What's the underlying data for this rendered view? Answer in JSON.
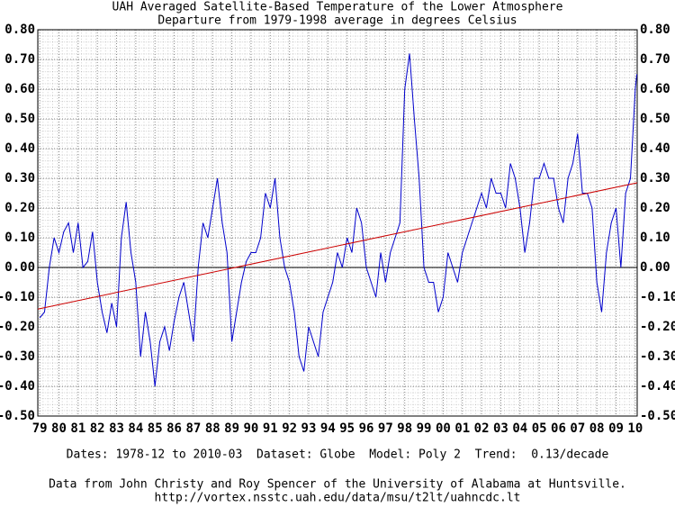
{
  "chart_data": {
    "type": "line",
    "title": "UAH Averaged Satellite-Based Temperature of the Lower Atmosphere",
    "subtitle": "Departure from 1979-1998 average in degrees Celsius",
    "footer": [
      "Dates: 1978-12 to 2010-03  Dataset: Globe  Model: Poly 2  Trend:  0.13/decade",
      "Data from John Christy and Roy Spencer of the University of Alabama at Huntsville.",
      "http://vortex.nsstc.uah.edu/data/msu/t2lt/uahncdc.lt"
    ],
    "grid": true,
    "xlim": [
      1978.9,
      2010.1
    ],
    "ylim": [
      -0.5,
      0.8
    ],
    "xticks": [
      {
        "value": 1979,
        "label": "79"
      },
      {
        "value": 1980,
        "label": "80"
      },
      {
        "value": 1981,
        "label": "81"
      },
      {
        "value": 1982,
        "label": "82"
      },
      {
        "value": 1983,
        "label": "83"
      },
      {
        "value": 1984,
        "label": "84"
      },
      {
        "value": 1985,
        "label": "85"
      },
      {
        "value": 1986,
        "label": "86"
      },
      {
        "value": 1987,
        "label": "87"
      },
      {
        "value": 1988,
        "label": "88"
      },
      {
        "value": 1989,
        "label": "89"
      },
      {
        "value": 1990,
        "label": "90"
      },
      {
        "value": 1991,
        "label": "91"
      },
      {
        "value": 1992,
        "label": "92"
      },
      {
        "value": 1993,
        "label": "93"
      },
      {
        "value": 1994,
        "label": "94"
      },
      {
        "value": 1995,
        "label": "95"
      },
      {
        "value": 1996,
        "label": "96"
      },
      {
        "value": 1997,
        "label": "97"
      },
      {
        "value": 1998,
        "label": "98"
      },
      {
        "value": 1999,
        "label": "99"
      },
      {
        "value": 2000,
        "label": "00"
      },
      {
        "value": 2001,
        "label": "01"
      },
      {
        "value": 2002,
        "label": "02"
      },
      {
        "value": 2003,
        "label": "03"
      },
      {
        "value": 2004,
        "label": "04"
      },
      {
        "value": 2005,
        "label": "05"
      },
      {
        "value": 2006,
        "label": "06"
      },
      {
        "value": 2007,
        "label": "07"
      },
      {
        "value": 2008,
        "label": "08"
      },
      {
        "value": 2009,
        "label": "09"
      },
      {
        "value": 2010,
        "label": "10"
      }
    ],
    "yticks": [
      {
        "value": 0.8,
        "label": "0.80"
      },
      {
        "value": 0.7,
        "label": "0.70"
      },
      {
        "value": 0.6,
        "label": "0.60"
      },
      {
        "value": 0.5,
        "label": "0.50"
      },
      {
        "value": 0.4,
        "label": "0.40"
      },
      {
        "value": 0.3,
        "label": "0.30"
      },
      {
        "value": 0.2,
        "label": "0.20"
      },
      {
        "value": 0.1,
        "label": "0.10"
      },
      {
        "value": 0,
        "label": "0.00"
      },
      {
        "value": -0.1,
        "label": "-0.10"
      },
      {
        "value": -0.2,
        "label": "-0.20"
      },
      {
        "value": -0.3,
        "label": "-0.30"
      },
      {
        "value": -0.4,
        "label": "-0.40"
      },
      {
        "value": -0.5,
        "label": "-0.50"
      }
    ],
    "x": [
      1979,
      1979.25,
      1979.5,
      1979.75,
      1980,
      1980.25,
      1980.5,
      1980.75,
      1981,
      1981.25,
      1981.5,
      1981.75,
      1982,
      1982.25,
      1982.5,
      1982.75,
      1983,
      1983.25,
      1983.5,
      1983.75,
      1984,
      1984.25,
      1984.5,
      1984.75,
      1985,
      1985.25,
      1985.5,
      1985.75,
      1986,
      1986.25,
      1986.5,
      1986.75,
      1987,
      1987.25,
      1987.5,
      1987.75,
      1988,
      1988.25,
      1988.5,
      1988.75,
      1989,
      1989.25,
      1989.5,
      1989.75,
      1990,
      1990.25,
      1990.5,
      1990.75,
      1991,
      1991.25,
      1991.5,
      1991.75,
      1992,
      1992.25,
      1992.5,
      1992.75,
      1993,
      1993.25,
      1993.5,
      1993.75,
      1994,
      1994.25,
      1994.5,
      1994.75,
      1995,
      1995.25,
      1995.5,
      1995.75,
      1996,
      1996.25,
      1996.5,
      1996.75,
      1997,
      1997.25,
      1997.5,
      1997.75,
      1998,
      1998.25,
      1998.5,
      1998.75,
      1999,
      1999.25,
      1999.5,
      1999.75,
      2000,
      2000.25,
      2000.5,
      2000.75,
      2001,
      2001.25,
      2001.5,
      2001.75,
      2002,
      2002.25,
      2002.5,
      2002.75,
      2003,
      2003.25,
      2003.5,
      2003.75,
      2004,
      2004.25,
      2004.5,
      2004.75,
      2005,
      2005.25,
      2005.5,
      2005.75,
      2006,
      2006.25,
      2006.5,
      2006.75,
      2007,
      2007.25,
      2007.5,
      2007.75,
      2008,
      2008.25,
      2008.5,
      2008.75,
      2009,
      2009.25,
      2009.5,
      2009.75,
      2010,
      2010.08
    ],
    "series": [
      {
        "color": "#0000cc",
        "values": [
          -0.17,
          -0.15,
          0.0,
          0.1,
          0.05,
          0.12,
          0.15,
          0.05,
          0.15,
          0.0,
          0.02,
          0.12,
          -0.05,
          -0.15,
          -0.22,
          -0.12,
          -0.2,
          0.1,
          0.22,
          0.05,
          -0.05,
          -0.3,
          -0.15,
          -0.25,
          -0.4,
          -0.25,
          -0.2,
          -0.28,
          -0.18,
          -0.1,
          -0.05,
          -0.15,
          -0.25,
          0.0,
          0.15,
          0.1,
          0.2,
          0.3,
          0.15,
          0.05,
          -0.25,
          -0.15,
          -0.05,
          0.02,
          0.05,
          0.05,
          0.1,
          0.25,
          0.2,
          0.3,
          0.1,
          0.0,
          -0.05,
          -0.15,
          -0.3,
          -0.35,
          -0.2,
          -0.25,
          -0.3,
          -0.15,
          -0.1,
          -0.05,
          0.05,
          0.0,
          0.1,
          0.05,
          0.2,
          0.15,
          0.0,
          -0.05,
          -0.1,
          0.05,
          -0.05,
          0.05,
          0.1,
          0.15,
          0.6,
          0.72,
          0.5,
          0.3,
          0.0,
          -0.05,
          -0.05,
          -0.15,
          -0.1,
          0.05,
          0.0,
          -0.05,
          0.05,
          0.1,
          0.15,
          0.2,
          0.25,
          0.2,
          0.3,
          0.25,
          0.25,
          0.2,
          0.35,
          0.3,
          0.2,
          0.05,
          0.15,
          0.3,
          0.3,
          0.35,
          0.3,
          0.3,
          0.2,
          0.15,
          0.3,
          0.35,
          0.45,
          0.25,
          0.25,
          0.2,
          -0.05,
          -0.15,
          0.05,
          0.15,
          0.2,
          0.0,
          0.25,
          0.3,
          0.6,
          0.65
        ]
      }
    ],
    "trend": {
      "color": "#cc0000",
      "x": [
        1978.9,
        2010.1
      ],
      "values": [
        -0.14,
        0.285
      ]
    }
  }
}
